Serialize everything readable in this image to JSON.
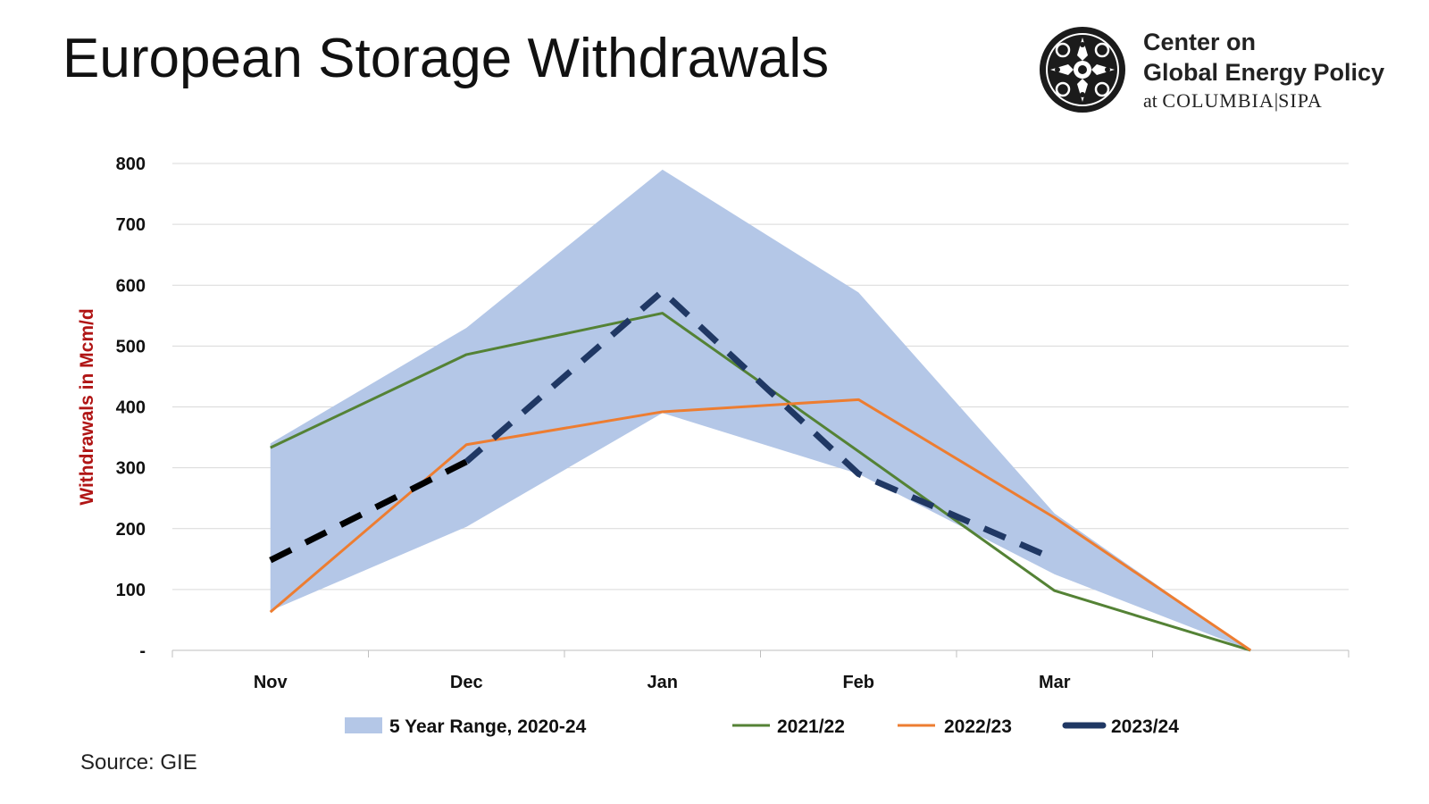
{
  "header": {
    "title": "European Storage Withdrawals"
  },
  "logo": {
    "line1": "Center on",
    "line2": "Global Energy Policy",
    "line3_prefix": "at",
    "line3_org": "COLUMBIA",
    "line3_sep": "|",
    "line3_school": "SIPA",
    "icon": "columbia-seal-icon"
  },
  "footer": {
    "source": "Source: GIE"
  },
  "chart_data": {
    "type": "line",
    "title": "European Storage Withdrawals",
    "ylabel": "Withdrawals in Mcm/d",
    "xlabel": "",
    "categories": [
      "Nov",
      "Dec",
      "Jan",
      "Feb",
      "Mar",
      ""
    ],
    "ylim": [
      0,
      800
    ],
    "yticks": [
      0,
      100,
      200,
      300,
      400,
      500,
      600,
      700,
      800
    ],
    "ytick_labels": [
      "-",
      "100",
      "200",
      "300",
      "400",
      "500",
      "600",
      "700",
      "800"
    ],
    "grid": "horizontal",
    "legend_position": "bottom",
    "range": {
      "name": "5 Year Range, 2020-24",
      "upper": [
        340,
        530,
        790,
        588,
        225,
        0
      ],
      "lower": [
        65,
        203,
        390,
        290,
        125,
        0
      ],
      "color": "#b4c7e7"
    },
    "series": [
      {
        "name": "2021/22",
        "values": [
          333,
          486,
          554,
          327,
          98,
          0
        ],
        "color": "#548235",
        "style": "solid"
      },
      {
        "name": "2022/23",
        "values": [
          63,
          338,
          392,
          412,
          218,
          0
        ],
        "color": "#ed7d31",
        "style": "solid"
      },
      {
        "name": "2023/24",
        "values": [
          148,
          310,
          590,
          290,
          150,
          null
        ],
        "color": "#203864",
        "start_color": "#000000",
        "style": "dashed"
      }
    ]
  }
}
